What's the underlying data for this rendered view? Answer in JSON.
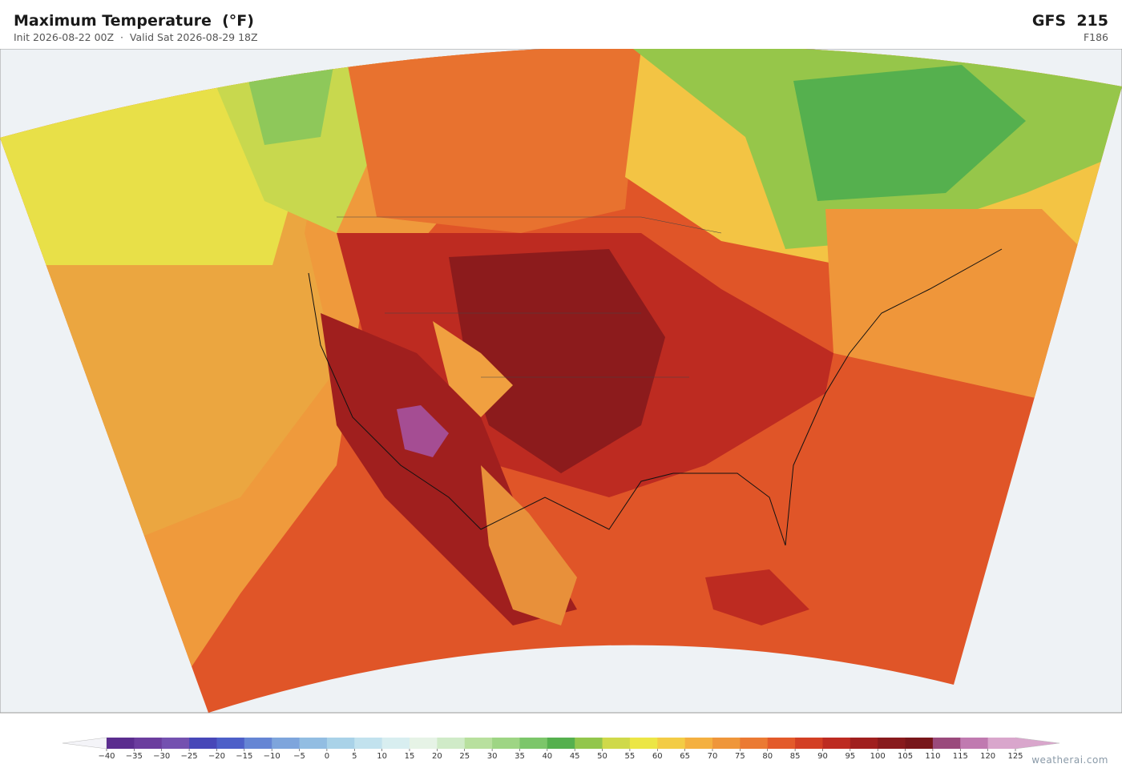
{
  "header": {
    "title": "Maximum Temperature  (°F)",
    "subtitle": "Init 2026-08-22 00Z  ·  Valid Sat 2026-08-29 18Z",
    "model": "GFS  215",
    "forecast_hour": "F186"
  },
  "colorbar": {
    "ticks": [
      "−40",
      "−35",
      "−30",
      "−25",
      "−20",
      "−15",
      "−10",
      "−5",
      "0",
      "5",
      "10",
      "15",
      "20",
      "25",
      "30",
      "35",
      "40",
      "45",
      "50",
      "55",
      "60",
      "65",
      "70",
      "75",
      "80",
      "85",
      "90",
      "95",
      "100",
      "105",
      "110",
      "115",
      "120",
      "125"
    ],
    "colors": [
      "#5b2d8f",
      "#6b3d9e",
      "#7451b0",
      "#4747b8",
      "#4d5fc8",
      "#6585d4",
      "#7ea5dc",
      "#92bde2",
      "#a9d2e8",
      "#c2e2ee",
      "#d8eef0",
      "#e6f3e6",
      "#d0ebc8",
      "#b8e09e",
      "#9ed584",
      "#7cc66a",
      "#55b04e",
      "#92c64c",
      "#cfd94a",
      "#ece645",
      "#f3cc45",
      "#f4b040",
      "#ef963a",
      "#eb7a33",
      "#e35a2a",
      "#d33f24",
      "#bd2b21",
      "#a01f1e",
      "#881a1c",
      "#78161a",
      "#9a4a7c",
      "#c07ab0",
      "#d9a6cc"
    ]
  },
  "footer": {
    "credit": "weatherai.com"
  }
}
